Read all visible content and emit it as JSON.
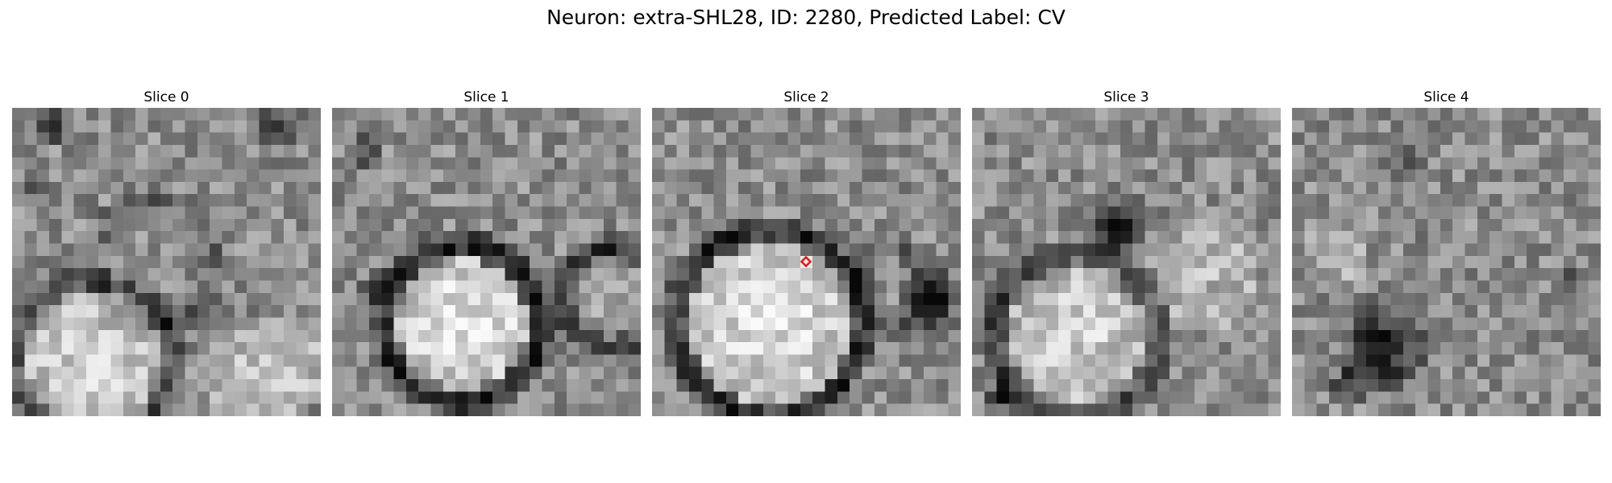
{
  "figure": {
    "title": "Neuron: extra-SHL28, ID: 2280, Predicted Label: CV"
  },
  "slices": [
    {
      "label": "Slice 0",
      "seed": 11,
      "marker": false
    },
    {
      "label": "Slice 1",
      "seed": 23,
      "marker": false
    },
    {
      "label": "Slice 2",
      "seed": 37,
      "marker": true
    },
    {
      "label": "Slice 3",
      "seed": 51,
      "marker": false
    },
    {
      "label": "Slice 4",
      "seed": 67,
      "marker": false
    }
  ],
  "marker": {
    "color": "#e01818",
    "shape": "diamond-outline"
  },
  "colormap": "gray"
}
